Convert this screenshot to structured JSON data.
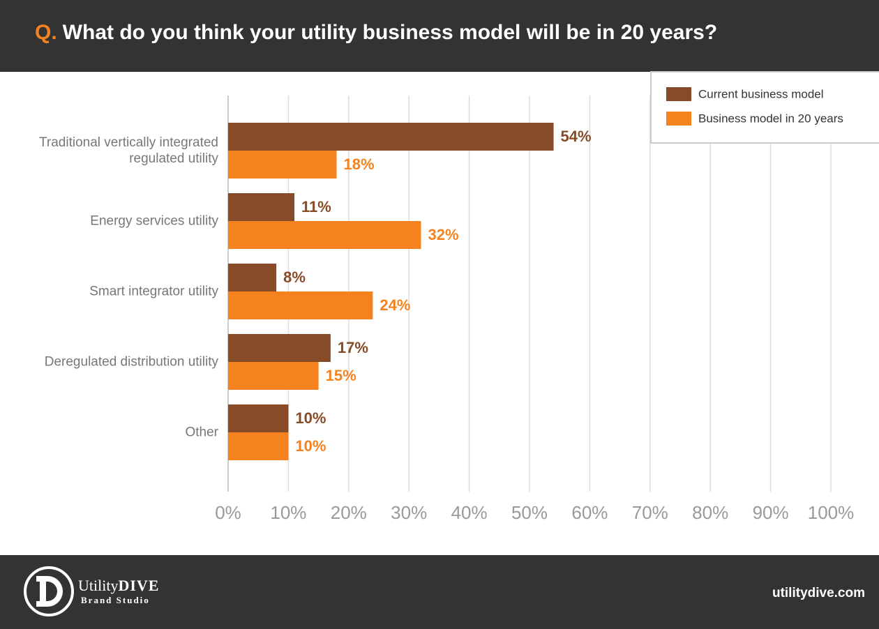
{
  "chart_data": {
    "type": "hbar",
    "title_prefix": "Q.",
    "title": "What do you think your utility business model will be in 20 years?",
    "categories": [
      "Traditional vertically integrated regulated utility",
      "Energy services utility",
      "Smart integrator utility",
      "Deregulated distribution utility",
      "Other"
    ],
    "series": [
      {
        "name": "Current business model",
        "color": "#874b27",
        "values": [
          54,
          11,
          8,
          17,
          10
        ],
        "value_labels": [
          "54%",
          "11%",
          "8%",
          "17%",
          "10%"
        ]
      },
      {
        "name": "Business model in 20 years",
        "color": "#f5821f",
        "values": [
          18,
          32,
          24,
          15,
          10
        ],
        "value_labels": [
          "18%",
          "32%",
          "24%",
          "15%",
          "10%"
        ]
      }
    ],
    "xlim": [
      0,
      100
    ],
    "xticks": [
      {
        "value": 0,
        "label": "0%"
      },
      {
        "value": 10,
        "label": "10%"
      },
      {
        "value": 20,
        "label": "20%"
      },
      {
        "value": 30,
        "label": "30%"
      },
      {
        "value": 40,
        "label": "40%"
      },
      {
        "value": 50,
        "label": "50%"
      },
      {
        "value": 60,
        "label": "60%"
      },
      {
        "value": 70,
        "label": "70%"
      },
      {
        "value": 80,
        "label": "80%"
      },
      {
        "value": 90,
        "label": "90%"
      },
      {
        "value": 100,
        "label": "100%"
      }
    ],
    "grid": true,
    "legend": "top-right"
  },
  "footer": {
    "brand_name": "Utility",
    "brand_name_bold": "DIVE",
    "brand_subtitle": "Brand Studio",
    "website": "utilitydive.com"
  }
}
